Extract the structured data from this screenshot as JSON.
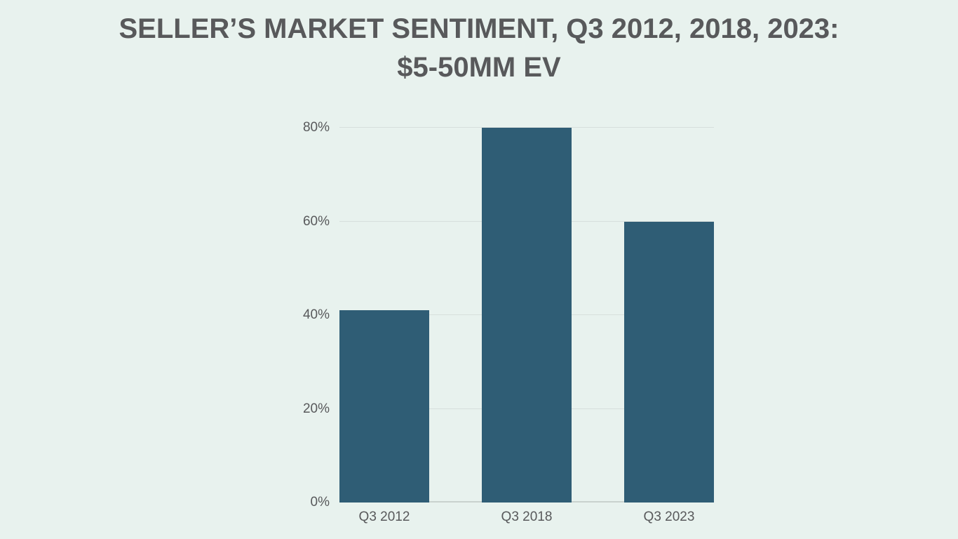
{
  "page": {
    "background_color": "#e8f2ee"
  },
  "title": {
    "line1": "SELLER’S MARKET SENTIMENT, Q3 2012, 2018, 2023:",
    "line2": "$5-50MM EV",
    "color": "#58595b"
  },
  "chart_data": {
    "type": "bar",
    "title": "SELLER’S MARKET SENTIMENT, Q3 2012, 2018, 2023: $5-50MM EV",
    "categories": [
      "Q3 2012",
      "Q3 2018",
      "Q3 2023"
    ],
    "values": [
      41,
      80,
      60
    ],
    "value_unit": "percent",
    "xlabel": "",
    "ylabel": "",
    "ylim": [
      0,
      80
    ],
    "yticks": [
      {
        "label": "0%",
        "value": 0
      },
      {
        "label": "20%",
        "value": 20
      },
      {
        "label": "40%",
        "value": 40
      },
      {
        "label": "60%",
        "value": 60
      },
      {
        "label": "80%",
        "value": 80
      }
    ],
    "grid": true,
    "legend": false,
    "bar_color": "#2f5d75",
    "gridline_color": "#d7dfdc",
    "baseline_color": "#c9d2ce",
    "tick_label_color": "#58595b"
  }
}
